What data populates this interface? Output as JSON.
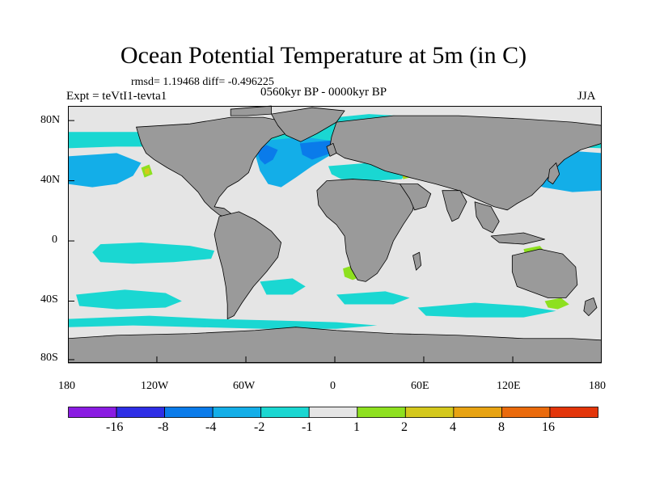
{
  "title": "Ocean Potential Temperature at 5m (in C)",
  "stats": "rmsd= 1.19468 diff= -0.496225",
  "experiment": "Expt = teVtI1-tevta1",
  "period": "0560kyr BP - 0000kyr BP",
  "season": "JJA",
  "axes": {
    "x_labels": [
      "180",
      "120W",
      "60W",
      "0",
      "60E",
      "120E",
      "180"
    ],
    "y_labels": [
      "80N",
      "40N",
      "0",
      "40S",
      "80S"
    ]
  },
  "colorbar": {
    "labels": [
      "-16",
      "-8",
      "-4",
      "-2",
      "-1",
      "1",
      "2",
      "4",
      "8",
      "16"
    ],
    "colors": [
      "#8a1be2",
      "#2e2ee6",
      "#0a7bea",
      "#13aee8",
      "#1ad7d2",
      "#e5e5e5",
      "#8ee01f",
      "#d4c81c",
      "#e8a312",
      "#ea6a0c",
      "#e3350a"
    ]
  },
  "palette": {
    "land": "#9a9a9a",
    "neutral": "#e5e5e5"
  }
}
